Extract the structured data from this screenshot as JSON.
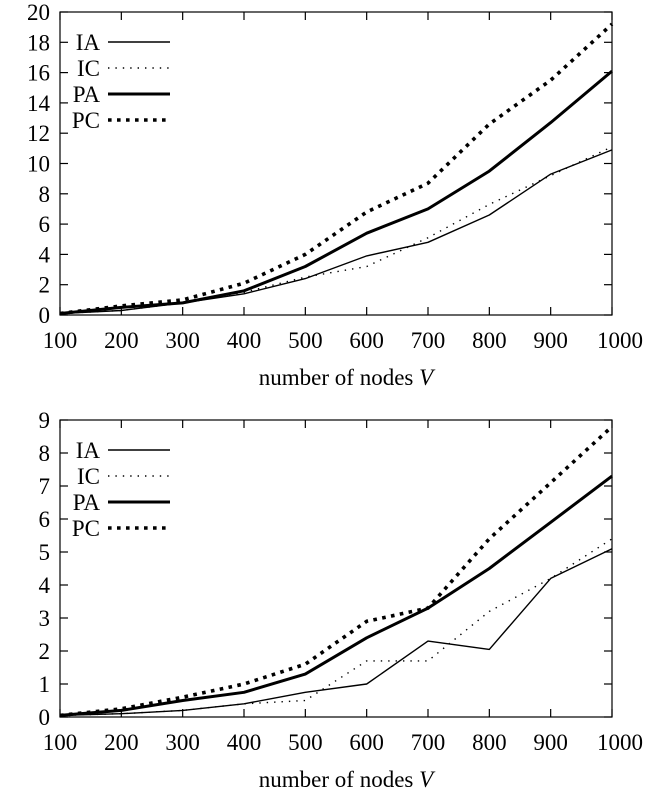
{
  "chart_data": [
    {
      "type": "line",
      "x": [
        100,
        200,
        300,
        400,
        500,
        600,
        700,
        800,
        900,
        1000
      ],
      "xlabel": "number of nodes",
      "xlabel_var": "V",
      "ylabel": "",
      "xlim": [
        100,
        1000
      ],
      "ylim": [
        0,
        20
      ],
      "xticks": [
        100,
        200,
        300,
        400,
        500,
        600,
        700,
        800,
        900,
        1000
      ],
      "yticks": [
        0,
        2,
        4,
        6,
        8,
        10,
        12,
        14,
        16,
        18,
        20
      ],
      "legend_position": "top-left",
      "grid": false,
      "series": [
        {
          "name": "IA",
          "style": "thin-solid",
          "values": [
            0.1,
            0.3,
            0.8,
            1.4,
            2.4,
            3.9,
            4.8,
            6.6,
            9.3,
            10.9
          ]
        },
        {
          "name": "IC",
          "style": "thin-dotted",
          "values": [
            0.1,
            0.3,
            0.8,
            1.5,
            2.5,
            3.2,
            5.1,
            7.3,
            9.2,
            11.1
          ]
        },
        {
          "name": "PA",
          "style": "thick-solid",
          "values": [
            0.1,
            0.5,
            0.8,
            1.6,
            3.2,
            5.4,
            7.0,
            9.5,
            12.7,
            16.1
          ]
        },
        {
          "name": "PC",
          "style": "thick-dotted",
          "values": [
            0.1,
            0.6,
            1.0,
            2.1,
            4.0,
            6.8,
            8.7,
            12.6,
            15.5,
            19.2
          ]
        }
      ]
    },
    {
      "type": "line",
      "x": [
        100,
        200,
        300,
        400,
        500,
        600,
        700,
        800,
        900,
        1000
      ],
      "xlabel": "number of nodes",
      "xlabel_var": "V",
      "ylabel": "",
      "xlim": [
        100,
        1000
      ],
      "ylim": [
        0,
        9
      ],
      "xticks": [
        100,
        200,
        300,
        400,
        500,
        600,
        700,
        800,
        900,
        1000
      ],
      "yticks": [
        0,
        1,
        2,
        3,
        4,
        5,
        6,
        7,
        8,
        9
      ],
      "legend_position": "top-left",
      "grid": false,
      "series": [
        {
          "name": "IA",
          "style": "thin-solid",
          "values": [
            0.05,
            0.1,
            0.2,
            0.4,
            0.75,
            1.0,
            2.3,
            2.05,
            4.2,
            5.1
          ]
        },
        {
          "name": "IC",
          "style": "thin-dotted",
          "values": [
            0.05,
            0.1,
            0.2,
            0.4,
            0.5,
            1.7,
            1.7,
            3.2,
            4.2,
            5.4
          ]
        },
        {
          "name": "PA",
          "style": "thick-solid",
          "values": [
            0.05,
            0.2,
            0.5,
            0.75,
            1.3,
            2.4,
            3.3,
            4.5,
            5.9,
            7.3
          ]
        },
        {
          "name": "PC",
          "style": "thick-dotted",
          "values": [
            0.05,
            0.25,
            0.6,
            1.0,
            1.6,
            2.9,
            3.3,
            5.4,
            7.1,
            8.8
          ]
        }
      ]
    }
  ]
}
